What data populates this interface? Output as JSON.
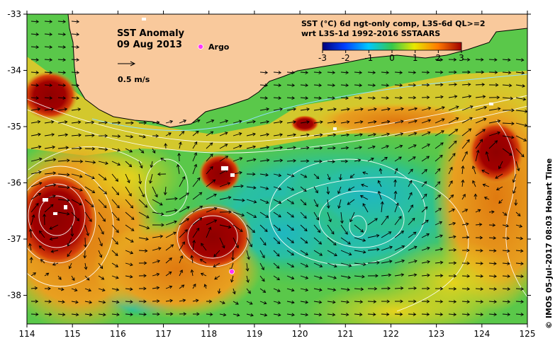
{
  "map": {
    "title_line1": "SST Anomaly",
    "title_line2": "09 Aug 2013",
    "argo_label": "Argo",
    "arrow_label": "0.5 m/s",
    "legend_line1": "SST (°C) 6d ngt-only comp, L3S-6d QL>=2",
    "legend_line2": "wrt L3S-1d 1992-2016 SSTAARS",
    "colorbar_ticks": [
      "-3",
      "-2",
      "-1",
      "0",
      "1",
      "2",
      "3"
    ],
    "credit": "© IMOS 05-Jul-2017 08:03 Hobart Time",
    "lon_ticks": [
      "114",
      "115",
      "116",
      "117",
      "118",
      "119",
      "120",
      "121",
      "122",
      "123",
      "124",
      "125"
    ],
    "lat_ticks": [
      "-33",
      "-34",
      "-35",
      "-36",
      "-37",
      "-38"
    ],
    "colors": {
      "land": "#f9c99c",
      "warm_core": "#9a0000",
      "cool": "#17b5c8",
      "mid": "#36c64a",
      "argo": "#ff33ff"
    }
  }
}
